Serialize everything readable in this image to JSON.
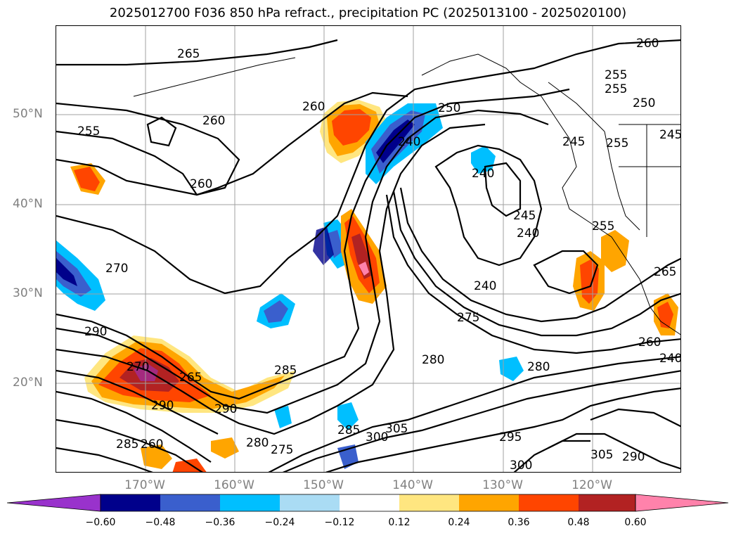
{
  "title": "2025012700 F036 850 hPa refract., precipitation PC (2025013100 - 2025020100)",
  "lat_labels": [
    "50°N",
    "40°N",
    "30°N",
    "20°N"
  ],
  "lon_labels": [
    "170°W",
    "160°W",
    "150°W",
    "140°W",
    "130°W",
    "120°W"
  ],
  "colorbar": {
    "ticks": [
      "−0.60",
      "−0.48",
      "−0.36",
      "−0.24",
      "−0.12",
      "0.12",
      "0.24",
      "0.36",
      "0.48",
      "0.60"
    ],
    "colors": [
      "#9932cc",
      "#00008b",
      "#3a5fcd",
      "#00bfff",
      "#aadcf4",
      "#ffffff",
      "#ffe680",
      "#ffa500",
      "#ff4500",
      "#b22222",
      "#ff82ab"
    ]
  },
  "contour_labels": [
    "265",
    "260",
    "260",
    "260",
    "255",
    "260",
    "250",
    "240",
    "240",
    "245",
    "240",
    "270",
    "240",
    "275",
    "290",
    "270",
    "265",
    "285",
    "280",
    "280",
    "290",
    "285",
    "285",
    "280",
    "300",
    "305",
    "275",
    "290",
    "295",
    "300",
    "305",
    "290",
    "260",
    "255",
    "255",
    "250",
    "245",
    "255",
    "245",
    "255",
    "265",
    "260",
    "240"
  ]
}
